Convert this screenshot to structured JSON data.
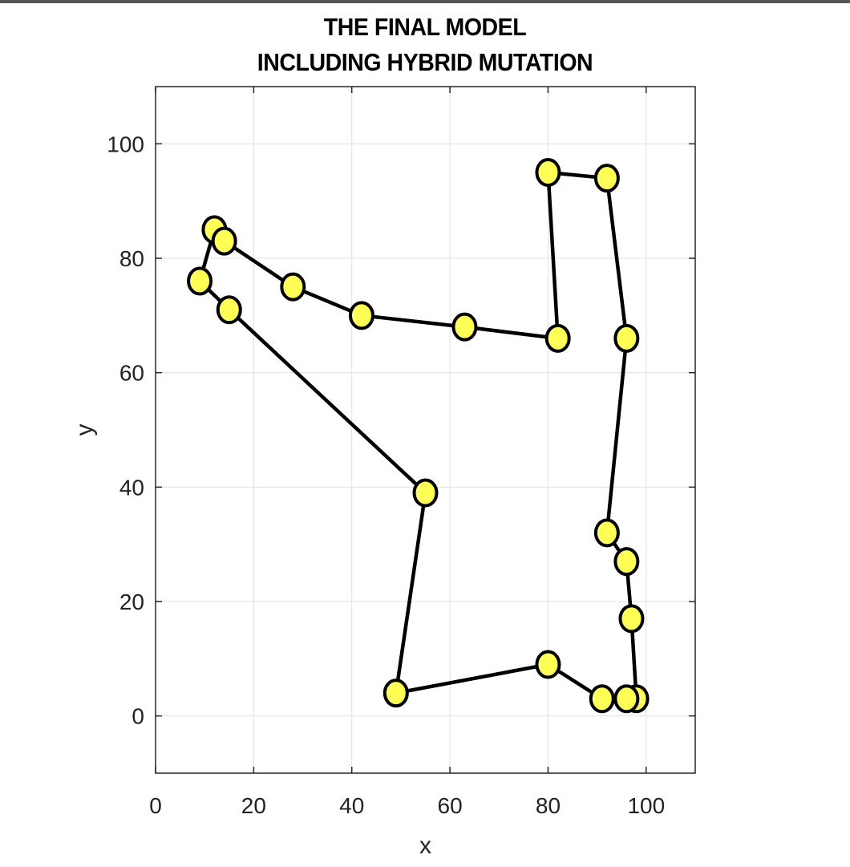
{
  "chart_data": {
    "type": "line",
    "title": [
      "THE FINAL MODEL",
      "INCLUDING HYBRID MUTATION"
    ],
    "xlabel": "x",
    "ylabel": "y",
    "xlim": [
      0,
      110
    ],
    "ylim": [
      -10,
      110
    ],
    "xticks": [
      0,
      20,
      40,
      60,
      80,
      100
    ],
    "yticks": [
      0,
      20,
      40,
      60,
      80,
      100
    ],
    "grid": true,
    "closed_path": true,
    "colors": {
      "marker_fill": "#ffff55",
      "marker_edge": "#000000",
      "line": "#000000",
      "grid": "#e0e0e0",
      "axes": "#262626"
    },
    "series": [
      {
        "points": [
          [
            80,
            95
          ],
          [
            92,
            94
          ],
          [
            96,
            66
          ],
          [
            92,
            32
          ],
          [
            96,
            27
          ],
          [
            97,
            17
          ],
          [
            98,
            3
          ],
          [
            96,
            3
          ],
          [
            91,
            3
          ],
          [
            80,
            9
          ],
          [
            49,
            4
          ],
          [
            55,
            39
          ],
          [
            15,
            71
          ],
          [
            9,
            76
          ],
          [
            12,
            85
          ],
          [
            14,
            83
          ],
          [
            28,
            75
          ],
          [
            42,
            70
          ],
          [
            63,
            68
          ],
          [
            82,
            66
          ]
        ]
      }
    ]
  }
}
